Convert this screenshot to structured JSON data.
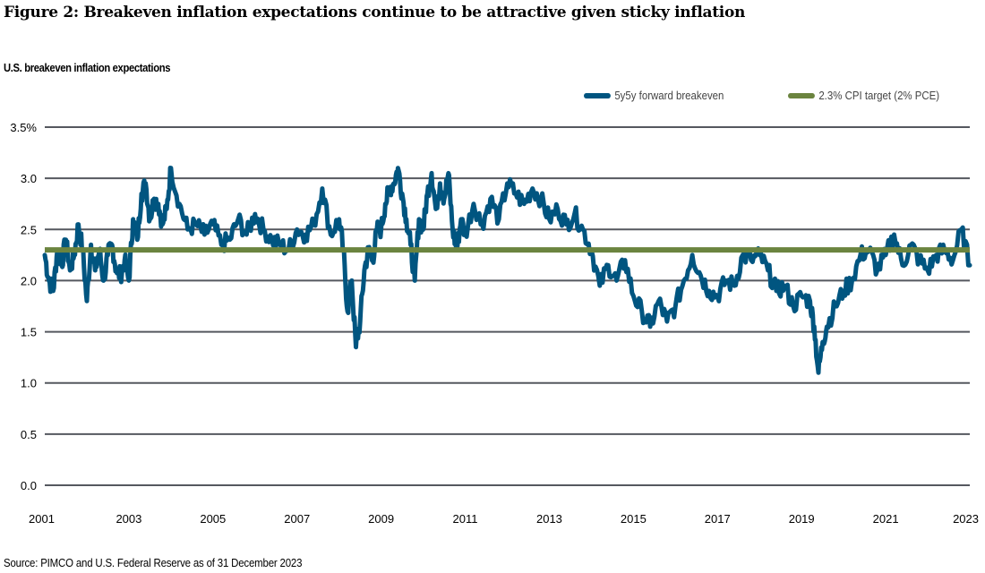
{
  "figure": {
    "title": "Figure 2: Breakeven inflation expectations continue to be attractive given sticky inflation",
    "subtitle": "U.S. breakeven inflation expectations",
    "source": "Source: PIMCO and U.S. Federal Reserve as of 31 December 2023"
  },
  "legend": [
    {
      "label": "5y5y forward breakeven",
      "color": "#005580"
    },
    {
      "label": "2.3% CPI target (2% PCE)",
      "color": "#6b843f"
    }
  ],
  "colors": {
    "series": "#005580",
    "target": "#6b843f",
    "grid": "#55585f"
  },
  "chart_data": {
    "type": "line",
    "title": "Figure 2: Breakeven inflation expectations continue to be attractive given sticky inflation",
    "subtitle": "U.S. breakeven inflation expectations",
    "xlabel": "",
    "ylabel": "",
    "ylim": [
      0.0,
      3.5
    ],
    "xlim": [
      2001,
      2023
    ],
    "grid": true,
    "legend_position": "top-right",
    "y_ticks": [
      "0.0",
      "0.5",
      "1.0",
      "1.5",
      "2.0",
      "2.5",
      "3.0",
      "3.5%"
    ],
    "y_tick_values": [
      0.0,
      0.5,
      1.0,
      1.5,
      2.0,
      2.5,
      3.0,
      3.5
    ],
    "x_ticks": [
      "2001",
      "2003",
      "2005",
      "2007",
      "2009",
      "2011",
      "2013",
      "2015",
      "2017",
      "2019",
      "2021",
      "2023"
    ],
    "series": [
      {
        "name": "5y5y forward breakeven",
        "x": [
          2001.0,
          2001.1,
          2001.2,
          2001.3,
          2001.4,
          2001.5,
          2001.6,
          2001.7,
          2001.8,
          2001.9,
          2002.0,
          2002.1,
          2002.2,
          2002.3,
          2002.4,
          2002.5,
          2002.6,
          2002.7,
          2002.8,
          2002.9,
          2003.0,
          2003.1,
          2003.2,
          2003.3,
          2003.4,
          2003.5,
          2003.6,
          2003.7,
          2003.8,
          2003.9,
          2004.0,
          2004.2,
          2004.4,
          2004.6,
          2004.8,
          2005.0,
          2005.2,
          2005.4,
          2005.6,
          2005.8,
          2006.0,
          2006.2,
          2006.4,
          2006.6,
          2006.8,
          2007.0,
          2007.2,
          2007.4,
          2007.6,
          2007.8,
          2008.0,
          2008.1,
          2008.2,
          2008.3,
          2008.4,
          2008.5,
          2008.6,
          2008.7,
          2008.8,
          2008.9,
          2009.0,
          2009.1,
          2009.2,
          2009.3,
          2009.4,
          2009.5,
          2009.6,
          2009.7,
          2009.8,
          2009.9,
          2010.0,
          2010.1,
          2010.2,
          2010.3,
          2010.4,
          2010.5,
          2010.6,
          2010.7,
          2010.8,
          2010.9,
          2011.0,
          2011.2,
          2011.4,
          2011.6,
          2011.8,
          2012.0,
          2012.2,
          2012.4,
          2012.6,
          2012.8,
          2013.0,
          2013.2,
          2013.4,
          2013.6,
          2013.8,
          2014.0,
          2014.2,
          2014.4,
          2014.6,
          2014.8,
          2015.0,
          2015.2,
          2015.4,
          2015.6,
          2015.8,
          2016.0,
          2016.2,
          2016.4,
          2016.6,
          2016.8,
          2017.0,
          2017.2,
          2017.4,
          2017.6,
          2017.8,
          2018.0,
          2018.2,
          2018.4,
          2018.6,
          2018.8,
          2019.0,
          2019.2,
          2019.3,
          2019.4,
          2019.5,
          2019.6,
          2019.8,
          2020.0,
          2020.2,
          2020.4,
          2020.6,
          2020.8,
          2021.0,
          2021.2,
          2021.4,
          2021.6,
          2021.8,
          2022.0,
          2022.2,
          2022.4,
          2022.6,
          2022.8,
          2023.0
        ],
        "values": [
          2.25,
          2.0,
          1.9,
          2.3,
          2.15,
          2.4,
          2.1,
          2.25,
          2.55,
          2.3,
          1.8,
          2.35,
          2.1,
          2.3,
          2.0,
          2.25,
          2.35,
          2.1,
          2.05,
          2.2,
          2.0,
          2.6,
          2.4,
          2.85,
          2.95,
          2.6,
          2.8,
          2.75,
          2.55,
          2.7,
          3.1,
          2.75,
          2.5,
          2.55,
          2.45,
          2.55,
          2.35,
          2.4,
          2.6,
          2.45,
          2.65,
          2.5,
          2.4,
          2.35,
          2.3,
          2.5,
          2.45,
          2.55,
          2.9,
          2.45,
          2.6,
          2.3,
          1.7,
          2.0,
          1.35,
          1.6,
          2.1,
          2.3,
          2.2,
          2.5,
          2.5,
          2.75,
          2.9,
          2.95,
          3.1,
          2.85,
          2.6,
          2.35,
          2.0,
          2.6,
          2.5,
          2.85,
          3.05,
          2.7,
          2.95,
          2.8,
          3.05,
          2.5,
          2.3,
          2.6,
          2.45,
          2.75,
          2.55,
          2.8,
          2.6,
          2.95,
          2.85,
          2.75,
          2.9,
          2.8,
          2.6,
          2.7,
          2.55,
          2.65,
          2.5,
          2.3,
          1.95,
          2.15,
          2.0,
          2.2,
          1.85,
          1.7,
          1.55,
          1.8,
          1.6,
          1.75,
          2.0,
          2.25,
          2.05,
          1.9,
          1.85,
          2.0,
          1.95,
          2.25,
          2.2,
          2.25,
          2.1,
          1.9,
          1.95,
          1.75,
          1.85,
          1.8,
          1.55,
          1.1,
          1.4,
          1.55,
          1.75,
          1.9,
          2.0,
          2.25,
          2.3,
          2.1,
          2.25,
          2.45,
          2.15,
          2.35,
          2.2,
          2.1,
          2.25,
          2.3,
          2.2,
          2.5,
          2.15
        ]
      },
      {
        "name": "2.3% CPI target (2% PCE)",
        "x": [
          2001,
          2023
        ],
        "values": [
          2.3,
          2.3
        ]
      }
    ]
  }
}
